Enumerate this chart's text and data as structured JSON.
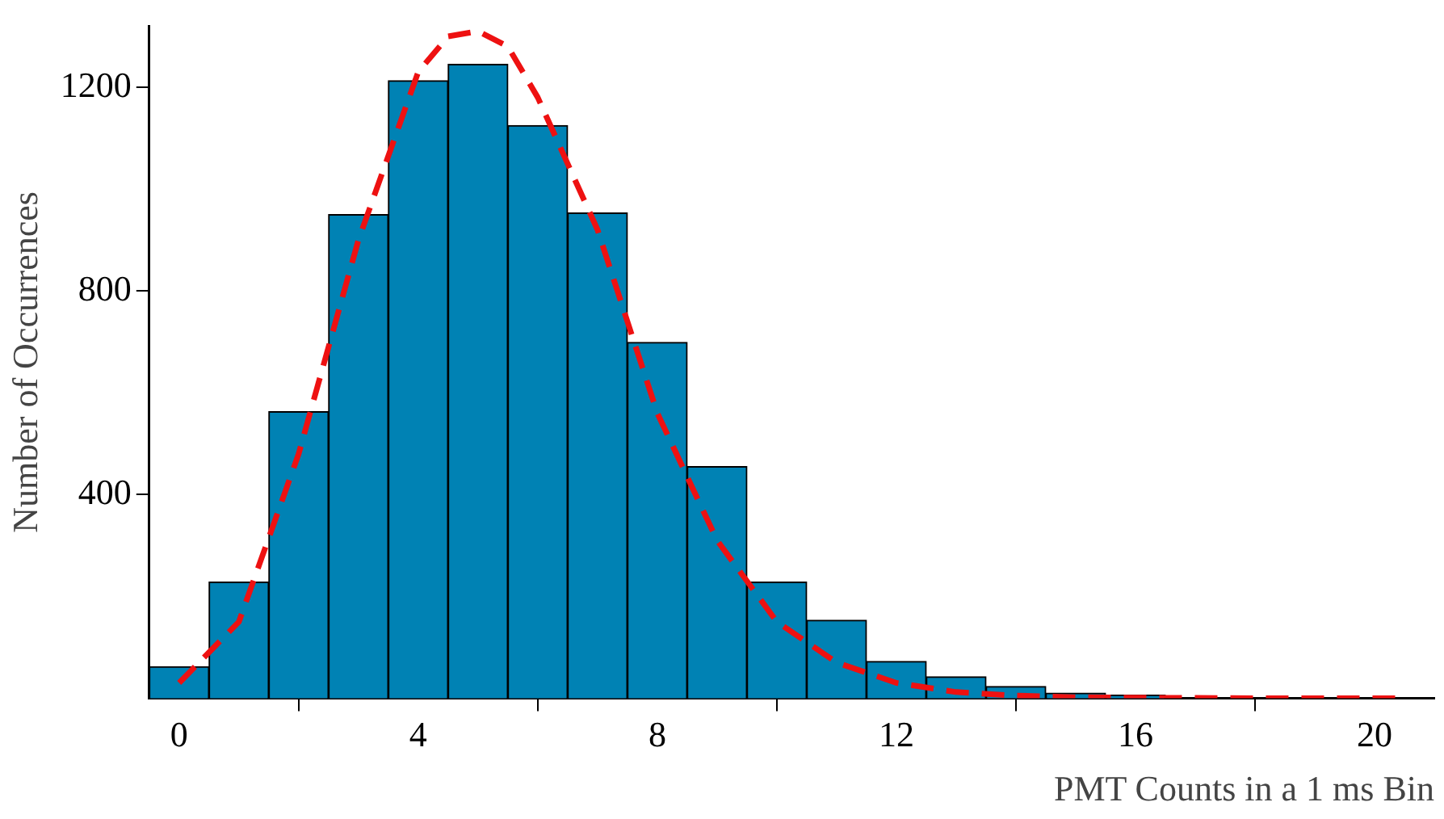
{
  "chart_data": {
    "type": "histogram",
    "xlabel": "PMT Counts in a 1 ms Bin",
    "ylabel": "Number of Occurrences",
    "bins": [
      -0.5,
      0.5,
      1.5,
      2.5,
      3.5,
      4.5,
      5.5,
      6.5,
      7.5,
      8.5,
      9.5,
      10.5,
      11.5,
      12.5,
      13.5,
      14.5,
      15.5,
      16.5,
      17.5,
      18.5,
      19.5,
      20.5
    ],
    "values": [
      62,
      228,
      563,
      950,
      1213,
      1245,
      1125,
      953,
      699,
      455,
      228,
      153,
      72,
      42,
      23,
      10,
      6,
      null,
      null,
      null,
      null
    ],
    "color": "#0082b4",
    "series": [
      {
        "type": "line",
        "color": "#ee1111",
        "line_style": "dashed",
        "x": [
          0,
          1,
          2,
          3,
          4,
          4.5,
          5,
          5.5,
          6,
          7,
          8,
          9,
          10,
          11,
          12,
          13,
          14,
          15,
          16,
          18,
          20,
          20.5
        ],
        "values": [
          30,
          150,
          480,
          900,
          1230,
          1300,
          1310,
          1280,
          1180,
          920,
          560,
          310,
          150,
          70,
          30,
          12,
          5,
          2,
          1,
          0,
          0,
          0
        ]
      }
    ],
    "xlim": [
      -0.5,
      21
    ],
    "xticks": [
      0,
      4,
      8,
      12,
      16,
      20
    ],
    "ylim": [
      0,
      1320
    ],
    "yticks": [
      400,
      800,
      1200
    ],
    "grid": false
  }
}
